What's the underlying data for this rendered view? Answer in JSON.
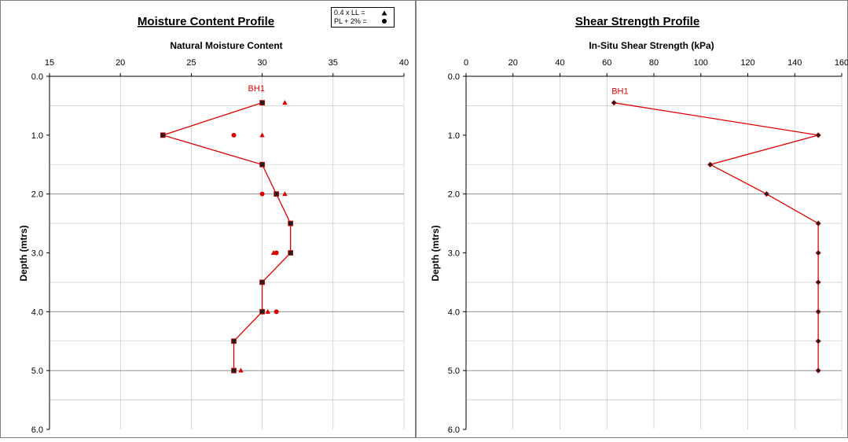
{
  "colors": {
    "series": "#e00000",
    "marker_dark": "#202020",
    "frame": "#808080"
  },
  "chart_data": [
    {
      "type": "line",
      "title": "Moisture Content Profile",
      "xlabel": "Natural Moisture Content",
      "ylabel": "Depth (mtrs)",
      "xlim": [
        15,
        40
      ],
      "ylim": [
        0,
        6
      ],
      "y_inverted": true,
      "x_ticks": [
        "15",
        "20",
        "25",
        "30",
        "35",
        "40"
      ],
      "y_ticks": [
        "0.0",
        "1.0",
        "2.0",
        "3.0",
        "4.0",
        "5.0",
        "6.0"
      ],
      "grid": true,
      "legend": {
        "position": "top-right",
        "entries": [
          {
            "label": "0.4 x LL  =",
            "marker": "triangle"
          },
          {
            "label": "PL + 2% =",
            "marker": "circle"
          }
        ]
      },
      "annotation": {
        "text": "BH1",
        "x": 29,
        "y": 0.2
      },
      "series": [
        {
          "name": "BH1",
          "marker": "square",
          "x": [
            30,
            23,
            30,
            31,
            32,
            32,
            30,
            30,
            28,
            28
          ],
          "y": [
            0.45,
            1.0,
            1.5,
            2.0,
            2.5,
            3.0,
            3.5,
            4.0,
            4.5,
            5.0
          ]
        },
        {
          "name": "0.4 x LL",
          "marker": "triangle",
          "x": [
            31.6,
            30,
            31.6,
            30.8,
            30.4,
            28.5
          ],
          "y": [
            0.45,
            1.0,
            2.0,
            3.0,
            4.0,
            5.0
          ]
        },
        {
          "name": "PL + 2%",
          "marker": "circle",
          "x": [
            28,
            30,
            31,
            31
          ],
          "y": [
            1.0,
            2.0,
            3.0,
            4.0
          ]
        }
      ]
    },
    {
      "type": "line",
      "title": "Shear Strength Profile",
      "xlabel": "In-Situ Shear Strength (kPa)",
      "ylabel": "Depth (mtrs)",
      "xlim": [
        0,
        160
      ],
      "ylim": [
        0,
        6
      ],
      "y_inverted": true,
      "x_ticks": [
        "0",
        "20",
        "40",
        "60",
        "80",
        "100",
        "120",
        "140",
        "160"
      ],
      "y_ticks": [
        "0.0",
        "1.0",
        "2.0",
        "3.0",
        "4.0",
        "5.0",
        "6.0"
      ],
      "grid": true,
      "annotation": {
        "text": "BH1",
        "x": 62,
        "y": 0.25
      },
      "series": [
        {
          "name": "BH1",
          "marker": "diamond",
          "x": [
            63,
            150,
            104,
            128,
            150,
            150,
            150,
            150,
            150,
            150
          ],
          "y": [
            0.45,
            1.0,
            1.5,
            2.0,
            2.5,
            3.0,
            3.5,
            4.0,
            4.5,
            5.0
          ]
        }
      ]
    }
  ]
}
